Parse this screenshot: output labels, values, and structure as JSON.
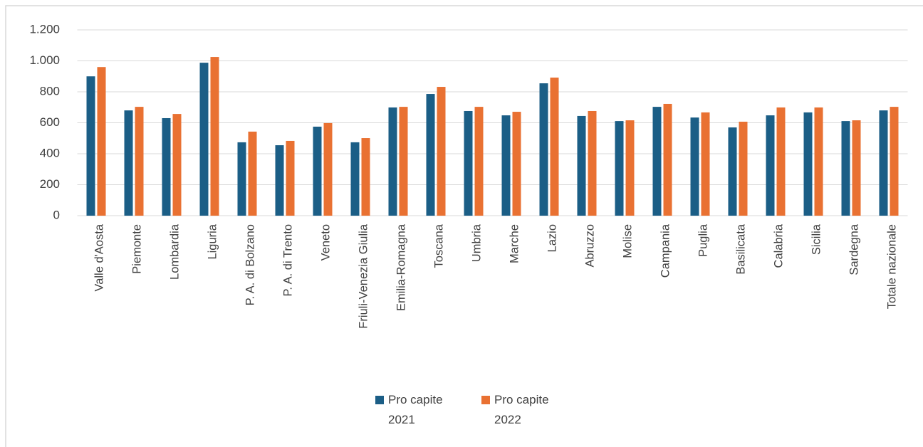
{
  "chart_data": {
    "type": "bar",
    "categories": [
      "Valle d'Aosta",
      "Piemonte",
      "Lombardia",
      "Liguria",
      "P. A. di Bolzano",
      "P. A. di Trento",
      "Veneto",
      "Friuli-Venezia Giulia",
      "Emilia-Romagna",
      "Toscana",
      "Umbria",
      "Marche",
      "Lazio",
      "Abruzzo",
      "Molise",
      "Campania",
      "Puglia",
      "Basilicata",
      "Calabria",
      "Sicilia",
      "Sardegna",
      "Totale nazionale"
    ],
    "series": [
      {
        "name": "Pro capite 2021",
        "color": "#1b5e86",
        "values": [
          900,
          680,
          630,
          988,
          474,
          455,
          575,
          474,
          699,
          786,
          676,
          648,
          855,
          644,
          611,
          703,
          634,
          570,
          648,
          667,
          611,
          680
        ]
      },
      {
        "name": "Pro capite 2022",
        "color": "#e97132",
        "values": [
          960,
          703,
          657,
          1025,
          543,
          483,
          598,
          501,
          703,
          832,
          703,
          671,
          892,
          676,
          616,
          722,
          667,
          607,
          699,
          699,
          616,
          703
        ]
      }
    ],
    "ylim": [
      0,
      1200
    ],
    "yticks": [
      0,
      200,
      400,
      600,
      800,
      {
        "value": 1000,
        "label": "1.000"
      },
      {
        "value": 1200,
        "label": "1.200"
      }
    ],
    "grid": true,
    "legend": "bottom"
  }
}
